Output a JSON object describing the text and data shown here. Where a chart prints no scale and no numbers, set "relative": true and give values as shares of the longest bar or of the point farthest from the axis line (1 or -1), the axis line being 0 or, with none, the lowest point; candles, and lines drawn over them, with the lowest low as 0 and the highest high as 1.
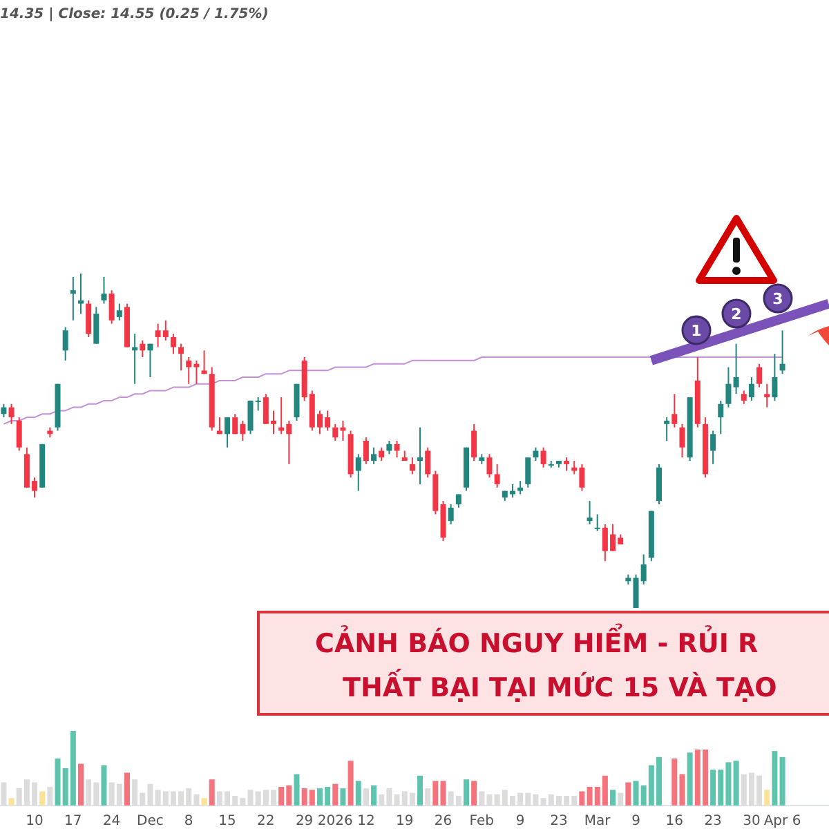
{
  "chart_data": [
    {
      "type": "candlestick",
      "relative": true,
      "categories": [
        null,
        null,
        null,
        null,
        null,
        null,
        null,
        null,
        null,
        null,
        null,
        null,
        null,
        null,
        null,
        null,
        null,
        null,
        null,
        null,
        null,
        null,
        null,
        null,
        null,
        null,
        null,
        null,
        null,
        null,
        null,
        null,
        null,
        null,
        null,
        null,
        null,
        null,
        null,
        null,
        null,
        null,
        null,
        null,
        null,
        null,
        null,
        null,
        null,
        null,
        null,
        null,
        null,
        null,
        null,
        null,
        null,
        null,
        null,
        null,
        null,
        null,
        null,
        null,
        null,
        null,
        null,
        null,
        null,
        null,
        null,
        null,
        null,
        null,
        null,
        null,
        null,
        null,
        null,
        null,
        null,
        null,
        null,
        null,
        null,
        null,
        null,
        null,
        null,
        null,
        null,
        null,
        null,
        null,
        null,
        null,
        null,
        null,
        null,
        null,
        null,
        null,
        null,
        null,
        null,
        null,
        null,
        null
      ],
      "ohlc": [
        [
          0.58,
          0.61,
          0.57,
          0.6
        ],
        [
          0.6,
          0.61,
          0.55,
          0.57
        ],
        [
          0.56,
          0.57,
          0.47,
          0.48
        ],
        [
          0.46,
          0.48,
          0.36,
          0.36
        ],
        [
          0.38,
          0.39,
          0.33,
          0.35
        ],
        [
          0.36,
          0.49,
          0.36,
          0.49
        ],
        [
          0.53,
          0.54,
          0.51,
          0.52
        ],
        [
          0.54,
          0.67,
          0.53,
          0.67
        ],
        [
          0.77,
          0.84,
          0.74,
          0.83
        ],
        [
          0.94,
          0.99,
          0.86,
          0.95
        ],
        [
          0.91,
          1,
          0.88,
          0.92
        ],
        [
          0.91,
          0.92,
          0.81,
          0.82
        ],
        [
          0.79,
          0.9,
          0.79,
          0.88
        ],
        [
          0.92,
          0.99,
          0.91,
          0.94
        ],
        [
          0.94,
          0.95,
          0.85,
          0.86
        ],
        [
          0.87,
          0.91,
          0.86,
          0.89
        ],
        [
          0.9,
          0.91,
          0.78,
          0.78
        ],
        [
          0.77,
          0.82,
          0.67,
          0.78
        ],
        [
          0.79,
          0.8,
          0.75,
          0.77
        ],
        [
          0.77,
          0.79,
          0.69,
          0.79
        ],
        [
          0.83,
          0.85,
          0.78,
          0.81
        ],
        [
          0.83,
          0.86,
          0.8,
          0.81
        ],
        [
          0.81,
          0.82,
          0.76,
          0.78
        ],
        [
          0.78,
          0.79,
          0.71,
          0.76
        ],
        [
          0.74,
          0.75,
          0.67,
          0.72
        ],
        [
          0.73,
          0.74,
          0.67,
          0.72
        ],
        [
          0.71,
          0.77,
          0.7,
          0.7
        ],
        [
          0.7,
          0.72,
          0.53,
          0.54
        ],
        [
          0.53,
          0.57,
          0.52,
          0.52
        ],
        [
          0.52,
          0.57,
          0.48,
          0.57
        ],
        [
          0.57,
          0.58,
          0.52,
          0.52
        ],
        [
          0.55,
          0.56,
          0.5,
          0.52
        ],
        [
          0.53,
          0.62,
          0.52,
          0.62
        ],
        [
          0.62,
          0.63,
          0.59,
          0.62
        ],
        [
          0.63,
          0.64,
          0.55,
          0.55
        ],
        [
          0.56,
          0.59,
          0.52,
          0.55
        ],
        [
          0.54,
          0.63,
          0.52,
          0.53
        ],
        [
          0.55,
          0.56,
          0.43,
          0.52
        ],
        [
          0.57,
          0.67,
          0.56,
          0.67
        ],
        [
          0.74,
          0.75,
          0.62,
          0.63
        ],
        [
          0.64,
          0.65,
          0.53,
          0.54
        ],
        [
          0.58,
          0.59,
          0.52,
          0.54
        ],
        [
          0.57,
          0.59,
          0.53,
          0.54
        ],
        [
          0.54,
          0.55,
          0.5,
          0.51
        ],
        [
          0.54,
          0.56,
          0.5,
          0.53
        ],
        [
          0.52,
          0.53,
          0.39,
          0.4
        ],
        [
          0.41,
          0.46,
          0.35,
          0.45
        ],
        [
          0.5,
          0.51,
          0.43,
          0.44
        ],
        [
          0.44,
          0.48,
          0.43,
          0.46
        ],
        [
          0.47,
          0.48,
          0.44,
          0.45
        ],
        [
          0.47,
          0.5,
          0.46,
          0.49
        ],
        [
          0.49,
          0.5,
          0.45,
          0.47
        ],
        [
          0.45,
          0.47,
          0.44,
          0.44
        ],
        [
          0.43,
          0.45,
          0.4,
          0.41
        ],
        [
          0.44,
          0.54,
          0.37,
          0.45
        ],
        [
          0.47,
          0.48,
          0.39,
          0.4
        ],
        [
          0.4,
          0.41,
          0.28,
          0.29
        ],
        [
          0.31,
          0.32,
          0.2,
          0.21
        ],
        [
          0.26,
          0.31,
          0.25,
          0.3
        ],
        [
          0.31,
          0.34,
          0.3,
          0.34
        ],
        [
          0.36,
          0.48,
          0.35,
          0.48
        ],
        [
          0.53,
          0.55,
          0.44,
          0.45
        ],
        [
          0.44,
          0.46,
          0.43,
          0.45
        ],
        [
          0.45,
          0.46,
          0.39,
          0.4
        ],
        [
          0.4,
          0.43,
          0.36,
          0.37
        ],
        [
          0.33,
          0.35,
          0.32,
          0.35
        ],
        [
          0.34,
          0.37,
          0.33,
          0.35
        ],
        [
          0.35,
          0.38,
          0.34,
          0.36
        ],
        [
          0.37,
          0.45,
          0.36,
          0.45
        ],
        [
          0.45,
          0.48,
          0.44,
          0.47
        ],
        [
          0.47,
          0.48,
          0.42,
          0.43
        ],
        [
          0.43,
          0.44,
          0.42,
          0.43
        ],
        [
          0.43,
          0.44,
          0.42,
          0.44
        ],
        [
          0.44,
          0.45,
          0.41,
          0.43
        ],
        [
          0.42,
          0.44,
          0.4,
          0.41
        ],
        [
          0.42,
          0.43,
          0.35,
          0.36
        ],
        [
          0.26,
          0.32,
          0.25,
          0.27
        ],
        [
          0.24,
          0.28,
          0.23,
          0.24
        ],
        [
          0.24,
          0.25,
          0.14,
          0.17
        ],
        [
          0.22,
          0.25,
          0.17,
          0.17
        ],
        [
          0.21,
          0.22,
          0.19,
          0.19
        ],
        [
          0.08,
          0.1,
          0.07,
          0.09
        ],
        [
          0,
          0.1,
          0,
          0.09
        ],
        [
          0.08,
          0.16,
          0.07,
          0.13
        ],
        [
          0.15,
          0.29,
          0.14,
          0.29
        ],
        [
          0.32,
          0.43,
          0.31,
          0.42
        ],
        [
          0.55,
          0.57,
          0.5,
          0.56
        ],
        [
          0.58,
          0.64,
          0.54,
          0.55
        ],
        [
          0.54,
          0.55,
          0.45,
          0.48
        ],
        [
          0.45,
          0.63,
          0.44,
          0.63
        ],
        [
          0.68,
          0.75,
          0.54,
          0.55
        ],
        [
          0.55,
          0.57,
          0.39,
          0.4
        ],
        [
          0.47,
          0.53,
          0.43,
          0.52
        ],
        [
          0.57,
          0.62,
          0.52,
          0.61
        ],
        [
          0.61,
          0.72,
          0.6,
          0.67
        ],
        [
          0.66,
          0.79,
          0.64,
          0.69
        ],
        [
          0.64,
          0.65,
          0.61,
          0.62
        ],
        [
          0.63,
          0.69,
          0.62,
          0.67
        ],
        [
          0.72,
          0.73,
          0.66,
          0.67
        ],
        [
          0.64,
          0.67,
          0.6,
          0.63
        ],
        [
          0.63,
          0.76,
          0.62,
          0.69
        ],
        [
          0.71,
          0.83,
          0.7,
          0.73
        ],
        null,
        null,
        null,
        null,
        null,
        null
      ],
      "series": [
        {
          "type": "line",
          "color": "#c58fd6",
          "values": [
            0.55,
            0.56,
            0.56,
            0.57,
            0.57,
            0.58,
            0.58,
            0.59,
            0.59,
            0.6,
            0.6,
            0.61,
            0.61,
            0.62,
            0.62,
            0.63,
            0.63,
            0.64,
            0.64,
            0.65,
            0.65,
            0.65,
            0.66,
            0.66,
            0.66,
            0.67,
            0.67,
            0.67,
            0.68,
            0.68,
            0.68,
            0.69,
            0.69,
            0.69,
            0.7,
            0.7,
            0.7,
            0.71,
            0.71,
            0.71,
            0.71,
            0.71,
            0.71,
            0.72,
            0.72,
            0.72,
            0.72,
            0.72,
            0.73,
            0.73,
            0.73,
            0.73,
            0.73,
            0.74,
            0.74,
            0.74,
            0.74,
            0.74,
            0.74,
            0.74,
            0.74,
            0.74,
            0.75,
            0.75,
            0.75,
            0.75,
            0.75,
            0.75,
            0.75,
            0.75,
            0.75,
            0.75,
            0.75,
            0.75,
            0.75,
            0.75,
            0.75,
            0.75,
            0.75,
            0.75,
            0.75,
            0.75,
            0.75,
            0.75,
            0.75,
            0.75,
            0.75,
            0.75,
            0.75,
            0.75,
            0.75,
            0.75,
            0.75,
            0.75,
            0.75,
            0.75,
            0.75,
            0.75,
            0.75,
            0.75,
            0.75,
            0.75,
            null,
            null,
            null,
            null,
            null,
            null
          ]
        },
        {
          "type": "line",
          "color": "#7b52b9",
          "values": [
            null,
            null,
            null,
            null,
            null,
            null,
            null,
            null,
            null,
            null,
            null,
            null,
            null,
            null,
            null,
            null,
            null,
            null,
            null,
            null,
            null,
            null,
            null,
            null,
            null,
            null,
            null,
            null,
            null,
            null,
            null,
            null,
            null,
            null,
            null,
            null,
            null,
            null,
            null,
            null,
            null,
            null,
            null,
            null,
            null,
            null,
            null,
            null,
            null,
            null,
            null,
            null,
            null,
            null,
            null,
            null,
            null,
            null,
            null,
            null,
            null,
            null,
            null,
            null,
            null,
            null,
            null,
            null,
            null,
            null,
            null,
            null,
            null,
            null,
            null,
            null,
            null,
            null,
            null,
            null,
            null,
            null,
            null,
            null,
            0.74,
            null,
            null,
            null,
            null,
            null,
            null,
            null,
            null,
            null,
            null,
            null,
            null,
            null,
            null,
            null,
            null,
            null,
            null,
            null,
            null,
            null,
            null,
            0.91
          ]
        }
      ],
      "annotations": [
        "14.35 | Close: 14.55 (0.25 / 1.75%)",
        "1",
        "2",
        "3",
        "CẢNH BÁO NGUY HIỂM - RỦI R",
        "THẤT BẠI TẠI MỨC 15 VÀ TẠO"
      ]
    },
    {
      "type": "bar",
      "relative": true,
      "tick_labels": "x",
      "categories": [
        null,
        null,
        null,
        null,
        "10",
        null,
        null,
        null,
        null,
        "17",
        null,
        null,
        null,
        null,
        "24",
        null,
        null,
        null,
        null,
        "Dec",
        null,
        null,
        null,
        null,
        "8",
        null,
        null,
        null,
        null,
        "15",
        null,
        null,
        null,
        null,
        "22",
        null,
        null,
        null,
        null,
        "29",
        null,
        null,
        null,
        "2026",
        null,
        null,
        null,
        "12",
        null,
        null,
        null,
        null,
        "19",
        null,
        null,
        null,
        null,
        "26",
        null,
        null,
        null,
        null,
        "Feb",
        null,
        null,
        null,
        null,
        "9",
        null,
        null,
        null,
        null,
        "23",
        null,
        null,
        null,
        null,
        "Mar",
        null,
        null,
        null,
        null,
        "9",
        null,
        null,
        null,
        null,
        "16",
        null,
        null,
        null,
        null,
        "23",
        null,
        null,
        null,
        null,
        "30",
        null,
        null,
        null,
        "Apr 6",
        null,
        null,
        null,
        null,
        null,
        null
      ],
      "values": [
        0.31,
        0.1,
        0.23,
        0.35,
        0.31,
        0.19,
        0.25,
        0.63,
        0.5,
        1,
        0.56,
        0.35,
        0.31,
        0.54,
        0.31,
        0.29,
        0.44,
        0.35,
        0.17,
        0.29,
        0.21,
        0.19,
        0.19,
        0.19,
        0.23,
        0.15,
        0.1,
        0.35,
        0.19,
        0.19,
        0.13,
        0.1,
        0.21,
        0.19,
        0.21,
        0.21,
        0.25,
        0.27,
        0.42,
        0.23,
        0.21,
        0.23,
        0.25,
        0.29,
        0.23,
        0.6,
        0.33,
        0.23,
        0.27,
        0.15,
        0.23,
        0.15,
        0.19,
        0.17,
        0.4,
        0.23,
        0.33,
        0.33,
        0.19,
        0.13,
        0.35,
        0.33,
        0.19,
        0.15,
        0.15,
        0.21,
        0.13,
        0.17,
        0.17,
        0.15,
        0.1,
        0.15,
        0.13,
        0.13,
        0.13,
        0.19,
        0.25,
        0.25,
        0.4,
        0.21,
        0.17,
        0.31,
        0.33,
        0.27,
        0.54,
        0.65,
        null,
        0.63,
        0.42,
        0.71,
        0.75,
        0.75,
        0.48,
        0.48,
        0.58,
        0.6,
        0.42,
        0.44,
        0.4,
        0.21,
        0.73,
        0.65,
        null,
        null,
        null,
        null,
        null,
        null
      ],
      "colors": [
        "#dcdcdc",
        "#fbe49a",
        "#dcdcdc",
        "#dcdcdc",
        "#dcdcdc",
        "#fbe49a",
        "#dcdcdc",
        "#5fc4ad",
        "#5fc4ad",
        "#5fc4ad",
        "#f5737c",
        "#dcdcdc",
        "#dcdcdc",
        "#5fc4ad",
        "#dcdcdc",
        "#dcdcdc",
        "#f5737c",
        "#dcdcdc",
        "#dcdcdc",
        "#dcdcdc",
        "#dcdcdc",
        "#dcdcdc",
        "#dcdcdc",
        "#dcdcdc",
        "#dcdcdc",
        "#dcdcdc",
        "#fbe49a",
        "#f5737c",
        "#dcdcdc",
        "#dcdcdc",
        "#dcdcdc",
        "#dcdcdc",
        "#dcdcdc",
        "#dcdcdc",
        "#dcdcdc",
        "#dcdcdc",
        "#f5737c",
        "#f5737c",
        "#5fc4ad",
        "#f5737c",
        "#f5737c",
        "#5fc4ad",
        "#5fc4ad",
        "#f5737c",
        "#5fc4ad",
        "#f5737c",
        "#5fc4ad",
        "#dcdcdc",
        "#5fc4ad",
        "#dcdcdc",
        "#dcdcdc",
        "#dcdcdc",
        "#dcdcdc",
        "#dcdcdc",
        "#5fc4ad",
        "#dcdcdc",
        "#f5737c",
        "#f5737c",
        "#dcdcdc",
        "#dcdcdc",
        "#5fc4ad",
        "#f5737c",
        "#dcdcdc",
        "#dcdcdc",
        "#dcdcdc",
        "#dcdcdc",
        "#dcdcdc",
        "#dcdcdc",
        "#dcdcdc",
        "#dcdcdc",
        "#dcdcdc",
        "#dcdcdc",
        "#dcdcdc",
        "#dcdcdc",
        "#dcdcdc",
        "#f5737c",
        "#f5737c",
        "#f5737c",
        "#f5737c",
        "#5fc4ad",
        "#dcdcdc",
        "#f5737c",
        "#5fc4ad",
        "#5fc4ad",
        "#5fc4ad",
        "#5fc4ad",
        null,
        "#f5737c",
        "#f5737c",
        "#5fc4ad",
        "#f5737c",
        "#f5737c",
        "#5fc4ad",
        "#5fc4ad",
        "#5fc4ad",
        "#5fc4ad",
        "#dcdcdc",
        "#dcdcdc",
        "#dcdcdc",
        "#fbe49a",
        "#5fc4ad",
        "#5fc4ad",
        null,
        null,
        null,
        null,
        null,
        null
      ]
    }
  ]
}
